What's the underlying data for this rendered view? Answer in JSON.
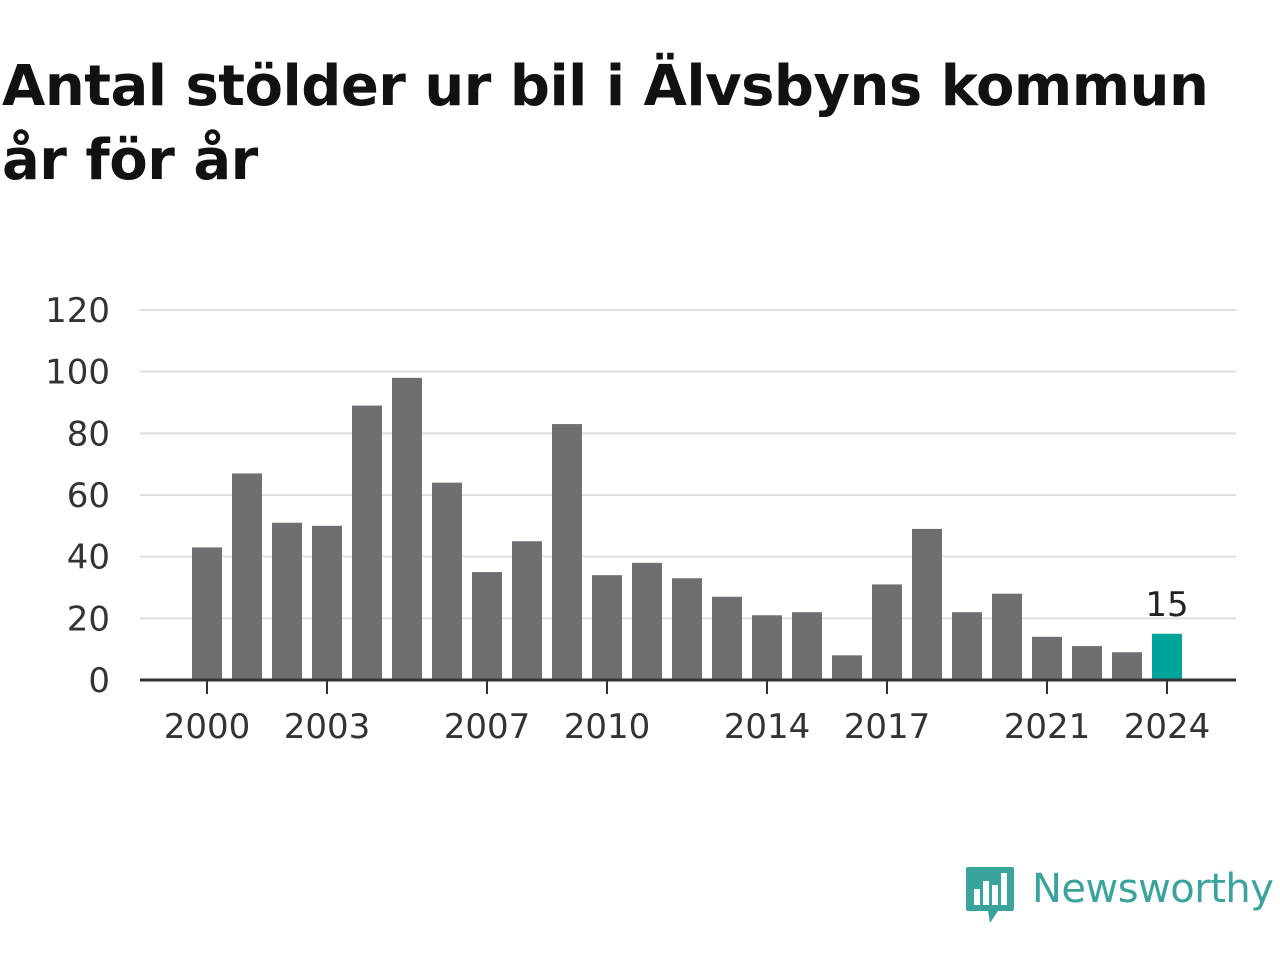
{
  "title": "Antal stölder ur bil i Älvsbyns kommun år för år",
  "brand": {
    "name": "Newsworthy",
    "icon": "newsworthy-logo-icon",
    "color": "#3aa39b"
  },
  "chart_data": {
    "type": "bar",
    "title": "Antal stölder ur bil i Älvsbyns kommun år för år",
    "xlabel": "",
    "ylabel": "",
    "categories": [
      2000,
      2001,
      2002,
      2003,
      2004,
      2005,
      2006,
      2007,
      2008,
      2009,
      2010,
      2011,
      2012,
      2013,
      2014,
      2015,
      2016,
      2017,
      2018,
      2019,
      2020,
      2021,
      2022,
      2023,
      2024
    ],
    "values": [
      43,
      67,
      51,
      50,
      89,
      98,
      64,
      35,
      45,
      83,
      34,
      38,
      33,
      27,
      21,
      22,
      8,
      31,
      49,
      22,
      28,
      14,
      11,
      9,
      15
    ],
    "ylim": [
      0,
      120
    ],
    "yticks": [
      0,
      20,
      40,
      60,
      80,
      100,
      120
    ],
    "xtick_labels": [
      2000,
      2003,
      2007,
      2010,
      2014,
      2017,
      2021,
      2024
    ],
    "highlight": {
      "category": 2024,
      "value_label": "15"
    },
    "grid": true,
    "colors": {
      "bar": "#6f6e73",
      "highlight": "#00a39a",
      "grid": "#dedede",
      "axis": "#333333"
    }
  }
}
